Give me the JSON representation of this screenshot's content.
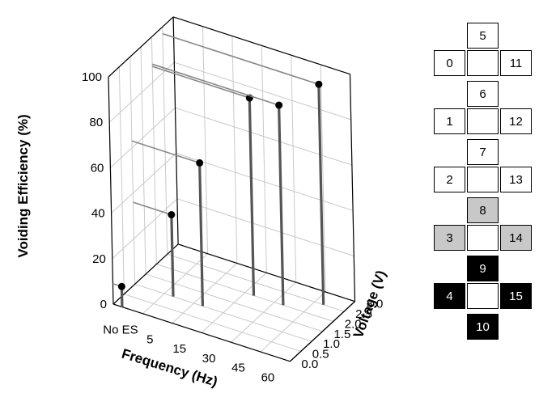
{
  "chart_data": {
    "type": "3d-stem",
    "xlabel": "Frequency (Hz)",
    "ylabel": "Voltage (V)",
    "zlabel": "Voiding Efficiency (%)",
    "x_ticks": [
      "No ES",
      "5",
      "15",
      "30",
      "45",
      "60"
    ],
    "y_ticks": [
      "0.0",
      "0.5",
      "1.0",
      "1.5",
      "2.0",
      "2.5",
      "3.0"
    ],
    "z_ticks": [
      "0",
      "20",
      "40",
      "60",
      "80",
      "100"
    ],
    "zlim": [
      0,
      100
    ],
    "grid": true,
    "points": [
      {
        "x": "No ES",
        "voltage": 0.0,
        "value": 9
      },
      {
        "x": "5",
        "voltage": 1.0,
        "value": 36
      },
      {
        "x": "15",
        "voltage": 1.0,
        "value": 63
      },
      {
        "x": "30",
        "voltage": 2.0,
        "value": 87
      },
      {
        "x": "45",
        "voltage": 2.0,
        "value": 88
      },
      {
        "x": "60",
        "voltage": 2.5,
        "value": 97
      }
    ]
  },
  "electrode_map": {
    "cells": [
      {
        "label": "5",
        "fill": "white"
      },
      {
        "label": "0",
        "fill": "white"
      },
      {
        "label": "11",
        "fill": "white"
      },
      {
        "label": "6",
        "fill": "white"
      },
      {
        "label": "1",
        "fill": "white"
      },
      {
        "label": "12",
        "fill": "white"
      },
      {
        "label": "7",
        "fill": "white"
      },
      {
        "label": "2",
        "fill": "white"
      },
      {
        "label": "13",
        "fill": "white"
      },
      {
        "label": "8",
        "fill": "gray"
      },
      {
        "label": "3",
        "fill": "gray"
      },
      {
        "label": "14",
        "fill": "gray"
      },
      {
        "label": "9",
        "fill": "black"
      },
      {
        "label": "4",
        "fill": "black"
      },
      {
        "label": "15",
        "fill": "black"
      },
      {
        "label": "10",
        "fill": "black"
      }
    ]
  },
  "colors": {
    "white": "#ffffff",
    "gray": "#c8c8c8",
    "black": "#000000"
  }
}
